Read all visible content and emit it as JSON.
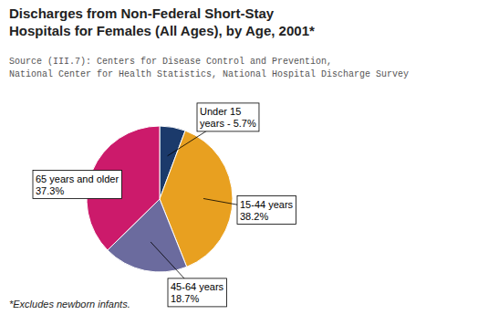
{
  "chart_data": {
    "type": "pie",
    "title": "Discharges from Non-Federal Short-Stay\nHospitals for Females (All Ages), by Age, 2001*",
    "source": "Source (III.7): Centers for Disease Control and Prevention,\nNational Center for Health Statistics, National Hospital Discharge Survey",
    "footnote": "*Excludes newborn infants.",
    "values": [
      5.7,
      38.2,
      18.7,
      37.3
    ],
    "value_labels": [
      "Under 15\nyears - 5.7%",
      "15-44 years\n38.2%",
      "45-64 years\n18.7%",
      "65 years and older\n37.3%"
    ],
    "colors": [
      "#1b3a6b",
      "#e8a020",
      "#6b6b9e",
      "#cc1a6b"
    ],
    "data_labels": true
  }
}
